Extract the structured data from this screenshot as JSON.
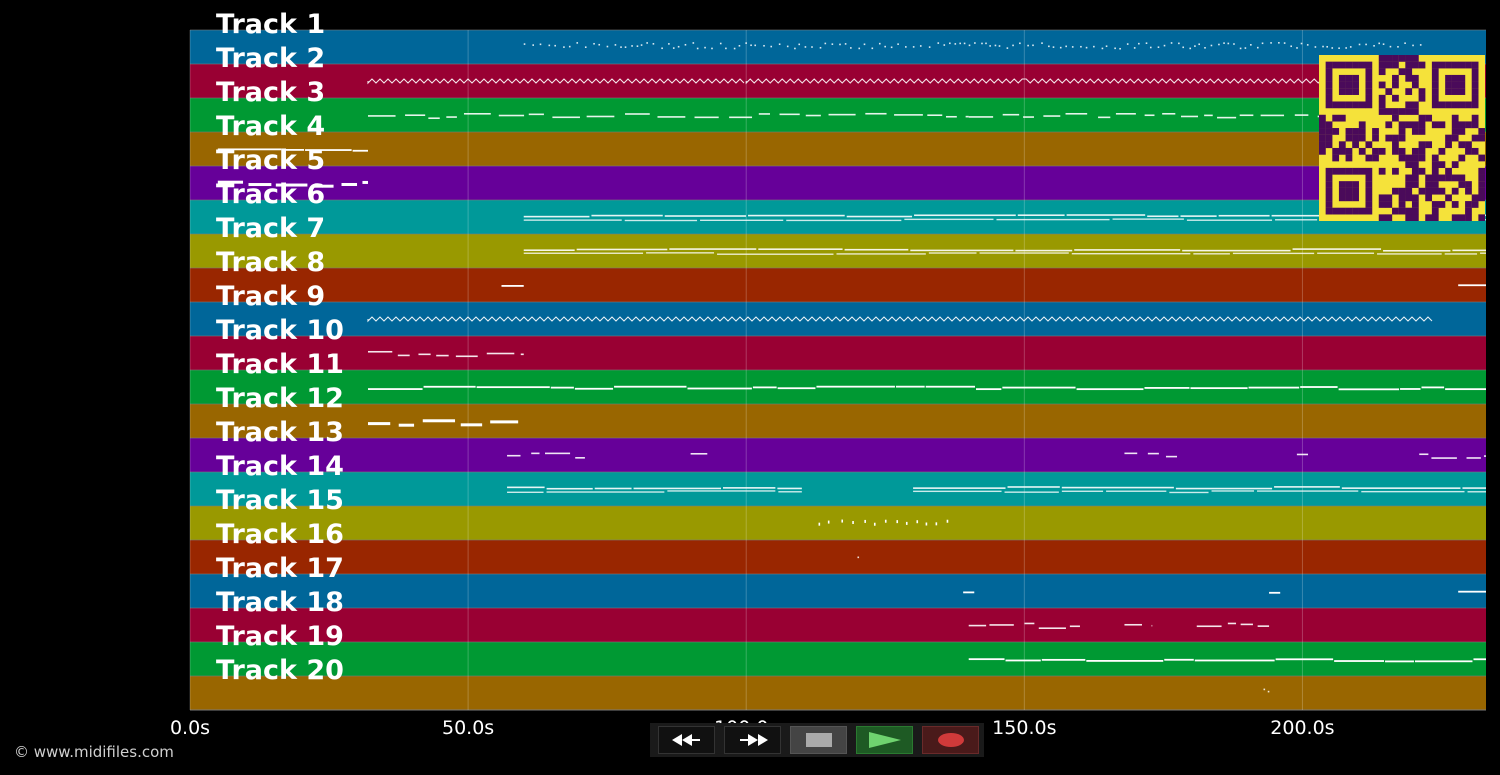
{
  "tracks": [
    {
      "label": "Track 1",
      "color": "#006699"
    },
    {
      "label": "Track 2",
      "color": "#990033"
    },
    {
      "label": "Track 3",
      "color": "#009933"
    },
    {
      "label": "Track 4",
      "color": "#996600"
    },
    {
      "label": "Track 5",
      "color": "#660099"
    },
    {
      "label": "Track 6",
      "color": "#009999"
    },
    {
      "label": "Track 7",
      "color": "#999900"
    },
    {
      "label": "Track 8",
      "color": "#992600"
    },
    {
      "label": "Track 9",
      "color": "#006699"
    },
    {
      "label": "Track 10",
      "color": "#990033"
    },
    {
      "label": "Track 11",
      "color": "#009933"
    },
    {
      "label": "Track 12",
      "color": "#996600"
    },
    {
      "label": "Track 13",
      "color": "#660099"
    },
    {
      "label": "Track 14",
      "color": "#009999"
    },
    {
      "label": "Track 15",
      "color": "#999900"
    },
    {
      "label": "Track 16",
      "color": "#992600"
    },
    {
      "label": "Track 17",
      "color": "#006699"
    },
    {
      "label": "Track 18",
      "color": "#990033"
    },
    {
      "label": "Track 19",
      "color": "#009933"
    },
    {
      "label": "Track 20",
      "color": "#996600"
    }
  ],
  "time_axis": {
    "max_seconds": 233,
    "ticks": [
      {
        "value": 0,
        "label": "0.0s"
      },
      {
        "value": 50,
        "label": "50.0s"
      },
      {
        "value": 100,
        "label": "100.0s"
      },
      {
        "value": 150,
        "label": "150.0s"
      },
      {
        "value": 200,
        "label": "200.0s"
      }
    ]
  },
  "notes": [
    {
      "track": 0,
      "segments": [
        [
          60,
          140
        ],
        [
          140,
          222
        ]
      ],
      "style": "dots"
    },
    {
      "track": 1,
      "segments": [
        [
          32,
          100
        ],
        [
          100,
          226
        ]
      ],
      "style": "wave"
    },
    {
      "track": 2,
      "segments": [
        [
          32,
          140
        ],
        [
          140,
          226
        ]
      ],
      "style": "dash"
    },
    {
      "track": 3,
      "segments": [
        [
          5,
          32
        ]
      ],
      "style": "solid"
    },
    {
      "track": 4,
      "segments": [
        [
          5,
          32
        ]
      ],
      "style": "thick"
    },
    {
      "track": 5,
      "segments": [
        [
          60,
          233
        ]
      ],
      "style": "double"
    },
    {
      "track": 6,
      "segments": [
        [
          60,
          233
        ]
      ],
      "style": "double"
    },
    {
      "track": 7,
      "segments": [
        [
          56,
          60
        ],
        [
          228,
          233
        ]
      ],
      "style": "solid"
    },
    {
      "track": 8,
      "segments": [
        [
          32,
          224
        ]
      ],
      "style": "wave"
    },
    {
      "track": 9,
      "segments": [
        [
          32,
          60
        ]
      ],
      "style": "dash"
    },
    {
      "track": 10,
      "segments": [
        [
          32,
          233
        ]
      ],
      "style": "solid"
    },
    {
      "track": 11,
      "segments": [
        [
          32,
          59
        ]
      ],
      "style": "thick"
    },
    {
      "track": 12,
      "segments": [
        [
          57,
          71
        ],
        [
          90,
          93
        ],
        [
          168,
          179
        ],
        [
          199,
          201
        ],
        [
          221,
          233
        ]
      ],
      "style": "dash"
    },
    {
      "track": 13,
      "segments": [
        [
          57,
          110
        ],
        [
          130,
          233
        ]
      ],
      "style": "double"
    },
    {
      "track": 14,
      "segments": [
        [
          113,
          137
        ]
      ],
      "style": "ticks"
    },
    {
      "track": 15,
      "segments": [
        [
          120,
          121
        ]
      ],
      "style": "dots"
    },
    {
      "track": 16,
      "segments": [
        [
          139,
          141
        ],
        [
          194,
          196
        ],
        [
          228,
          233
        ]
      ],
      "style": "solid"
    },
    {
      "track": 17,
      "segments": [
        [
          140,
          160
        ],
        [
          168,
          173
        ],
        [
          181,
          194
        ]
      ],
      "style": "dash"
    },
    {
      "track": 18,
      "segments": [
        [
          140,
          233
        ]
      ],
      "style": "solid"
    },
    {
      "track": 19,
      "segments": [
        [
          193,
          195
        ]
      ],
      "style": "dots"
    }
  ],
  "transport": {
    "rewind": "rewind-icon",
    "fast_forward": "fast-forward-icon",
    "stop": "stop-icon",
    "play": "play-icon",
    "record": "record-icon"
  },
  "copyright": "© www.midifiles.com",
  "qr_colors": {
    "fg": "#4a0a5a",
    "bg": "#f5e23a"
  }
}
